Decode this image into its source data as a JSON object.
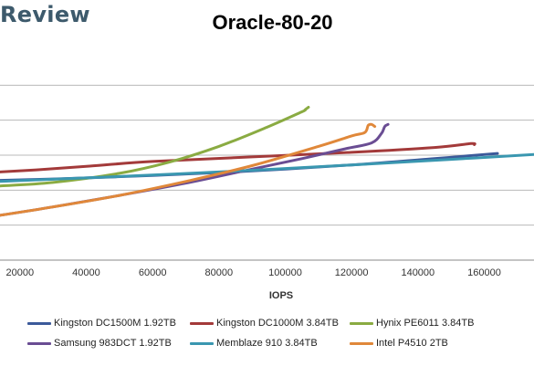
{
  "brand": "Review",
  "chart_data": {
    "type": "line",
    "title": "Oracle-80-20",
    "xlabel": "IOPS",
    "ylabel": "",
    "xlim": [
      14000,
      175000
    ],
    "ylim": [
      0,
      6
    ],
    "x_ticks": [
      20000,
      40000,
      60000,
      80000,
      100000,
      120000,
      140000,
      160000
    ],
    "x_tick_labels": [
      "20000",
      "40000",
      "60000",
      "80000",
      "100000",
      "120000",
      "140000",
      "160000"
    ],
    "grid": "horizontal",
    "legend_position": "bottom",
    "series": [
      {
        "name": "Kingston DC1500M 1.92TB",
        "color": "#3c5a9a",
        "x": [
          14000,
          30000,
          60000,
          90000,
          120000,
          145000,
          164000
        ],
        "y": [
          2.28,
          2.32,
          2.42,
          2.55,
          2.72,
          2.9,
          3.05
        ]
      },
      {
        "name": "Kingston DC1000M 3.84TB",
        "color": "#a33a3a",
        "x": [
          14000,
          25000,
          40000,
          60000,
          90000,
          120000,
          145000,
          156000,
          157000
        ],
        "y": [
          2.52,
          2.58,
          2.68,
          2.82,
          2.95,
          3.08,
          3.22,
          3.33,
          3.3
        ]
      },
      {
        "name": "Hynix PE6011 3.84TB",
        "color": "#8aab42",
        "x": [
          14000,
          30000,
          50000,
          65000,
          80000,
          95000,
          105000,
          106000,
          107000
        ],
        "y": [
          2.12,
          2.22,
          2.48,
          2.8,
          3.25,
          3.82,
          4.24,
          4.3,
          4.37
        ]
      },
      {
        "name": "Samsung 983DCT 1.92TB",
        "color": "#6a4d93",
        "x": [
          14000,
          30000,
          50000,
          70000,
          90000,
          105000,
          118000,
          126000,
          129000,
          130000,
          131000
        ],
        "y": [
          1.28,
          1.52,
          1.85,
          2.2,
          2.6,
          2.9,
          3.18,
          3.35,
          3.62,
          3.82,
          3.88
        ]
      },
      {
        "name": "Memblaze 910 3.84TB",
        "color": "#3a97b0",
        "x": [
          14000,
          40000,
          80000,
          120000,
          150000,
          175000
        ],
        "y": [
          2.25,
          2.35,
          2.52,
          2.72,
          2.88,
          3.02
        ]
      },
      {
        "name": "Intel P4510 2TB",
        "color": "#e0883a",
        "x": [
          14000,
          30000,
          50000,
          70000,
          90000,
          110000,
          120000,
          124000,
          125000,
          126000,
          127000
        ],
        "y": [
          1.28,
          1.52,
          1.85,
          2.25,
          2.7,
          3.25,
          3.55,
          3.65,
          3.85,
          3.88,
          3.82
        ]
      }
    ]
  }
}
